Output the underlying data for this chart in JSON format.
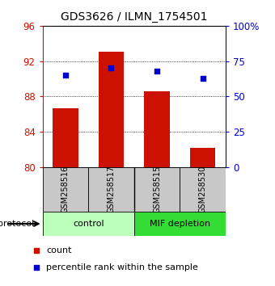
{
  "title": "GDS3626 / ILMN_1754501",
  "samples": [
    "GSM258516",
    "GSM258517",
    "GSM258515",
    "GSM258530"
  ],
  "bar_values": [
    86.7,
    93.1,
    88.6,
    82.2
  ],
  "percentile_values": [
    65,
    70,
    68,
    63
  ],
  "ylim_left": [
    80,
    96
  ],
  "ylim_right": [
    0,
    100
  ],
  "yticks_left": [
    80,
    84,
    88,
    92,
    96
  ],
  "yticks_right": [
    0,
    25,
    50,
    75,
    100
  ],
  "bar_color": "#cc1100",
  "dot_color": "#0000cc",
  "bar_width": 0.55,
  "groups": [
    {
      "label": "control",
      "samples": [
        0,
        1
      ],
      "color": "#bbffbb"
    },
    {
      "label": "MIF depletion",
      "samples": [
        2,
        3
      ],
      "color": "#33dd33"
    }
  ],
  "protocol_label": "protocol",
  "legend_count": "count",
  "legend_percentile": "percentile rank within the sample",
  "background_color": "#ffffff",
  "plot_bg_color": "#ffffff",
  "tick_label_box_color": "#c8c8c8",
  "title_fontsize": 10,
  "axis_fontsize": 8.5
}
